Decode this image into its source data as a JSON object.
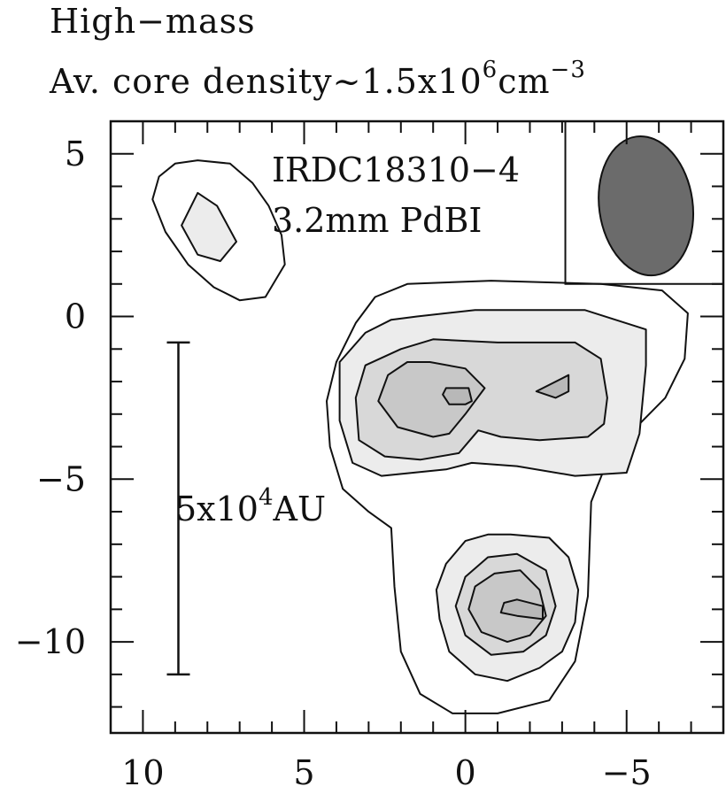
{
  "header": {
    "line1": "High−mass",
    "line2_prefix": "Av. core density~1.5x10",
    "line2_exp": "6",
    "line2_unit": "cm",
    "line2_unit_exp": "−3"
  },
  "chart_data": {
    "type": "contour",
    "title": "",
    "xlabel": "",
    "ylabel": "",
    "xlim": [
      11,
      -8
    ],
    "ylim": [
      -12.8,
      6
    ],
    "x_ticks": [
      10,
      5,
      0,
      -5
    ],
    "x_tick_labels": [
      "10",
      "5",
      "0",
      "−5"
    ],
    "y_ticks": [
      5,
      0,
      -5,
      -10
    ],
    "y_tick_labels": [
      "5",
      "0",
      "−5",
      "−10"
    ],
    "x_minor_step": 1,
    "y_minor_step": 1,
    "grid": false,
    "annotations": {
      "source": "IRDC18310−4",
      "instrument": "3.2mm PdBI"
    },
    "scale_bar": {
      "label_prefix": "5x10",
      "label_exp": "4",
      "label_unit": "AU",
      "x": 8.9,
      "y_from": -0.8,
      "y_to": -11.0
    },
    "beam": {
      "center": [
        -5.6,
        3.4
      ],
      "major_axis": 4.3,
      "minor_axis": 2.9,
      "fill": "#6b6b6b"
    },
    "contour_fills": [
      "#ffffff",
      "#ececec",
      "#d8d8d8",
      "#c8c8c8",
      "#b8b8b8",
      "#a8a8a8"
    ],
    "contours": [
      {
        "level": 1,
        "points": [
          [
            8.3,
            4.8
          ],
          [
            7.3,
            4.7
          ],
          [
            6.6,
            4.1
          ],
          [
            6.1,
            3.4
          ],
          [
            5.7,
            2.5
          ],
          [
            5.6,
            1.6
          ],
          [
            6.2,
            0.6
          ],
          [
            7.0,
            0.5
          ],
          [
            7.8,
            0.9
          ],
          [
            8.6,
            1.6
          ],
          [
            9.3,
            2.6
          ],
          [
            9.7,
            3.6
          ],
          [
            9.5,
            4.3
          ],
          [
            9.0,
            4.7
          ]
        ]
      },
      {
        "level": 2,
        "points": [
          [
            8.3,
            3.8
          ],
          [
            7.7,
            3.4
          ],
          [
            7.1,
            2.3
          ],
          [
            7.6,
            1.7
          ],
          [
            8.3,
            1.9
          ],
          [
            8.8,
            2.8
          ]
        ]
      },
      {
        "level": 1,
        "points": [
          [
            1.8,
            1.0
          ],
          [
            -0.8,
            1.1
          ],
          [
            -4.2,
            1.0
          ],
          [
            -6.1,
            0.8
          ],
          [
            -6.9,
            0.1
          ],
          [
            -6.8,
            -1.3
          ],
          [
            -6.2,
            -2.5
          ],
          [
            -5.1,
            -3.6
          ],
          [
            -4.3,
            -4.7
          ],
          [
            -3.9,
            -5.7
          ],
          [
            -3.8,
            -8.6
          ],
          [
            -3.4,
            -10.6
          ],
          [
            -2.6,
            -11.8
          ],
          [
            -1.0,
            -12.2
          ],
          [
            0.4,
            -12.2
          ],
          [
            1.4,
            -11.6
          ],
          [
            2.0,
            -10.3
          ],
          [
            2.2,
            -8.3
          ],
          [
            2.3,
            -6.5
          ],
          [
            3.0,
            -6.0
          ],
          [
            3.8,
            -5.3
          ],
          [
            4.2,
            -4.0
          ],
          [
            4.3,
            -2.6
          ],
          [
            4.0,
            -1.4
          ],
          [
            3.4,
            -0.2
          ],
          [
            2.8,
            0.6
          ]
        ]
      },
      {
        "level": 2,
        "points": [
          [
            1.5,
            0.0
          ],
          [
            -0.3,
            0.2
          ],
          [
            -3.7,
            0.2
          ],
          [
            -5.6,
            -0.4
          ],
          [
            -5.6,
            -1.5
          ],
          [
            -5.4,
            -3.6
          ],
          [
            -5.0,
            -4.8
          ],
          [
            -3.4,
            -4.9
          ],
          [
            -1.6,
            -4.6
          ],
          [
            -0.2,
            -4.5
          ],
          [
            0.6,
            -4.7
          ],
          [
            2.6,
            -4.9
          ],
          [
            3.5,
            -4.5
          ],
          [
            3.9,
            -3.2
          ],
          [
            3.9,
            -1.4
          ],
          [
            3.1,
            -0.5
          ],
          [
            2.3,
            -0.1
          ]
        ]
      },
      {
        "level": 3,
        "points": [
          [
            1.0,
            -0.7
          ],
          [
            -1.0,
            -0.8
          ],
          [
            -3.4,
            -0.8
          ],
          [
            -4.2,
            -1.3
          ],
          [
            -4.4,
            -2.5
          ],
          [
            -4.3,
            -3.3
          ],
          [
            -3.8,
            -3.7
          ],
          [
            -2.3,
            -3.8
          ],
          [
            -1.1,
            -3.7
          ],
          [
            -0.4,
            -3.5
          ],
          [
            0.2,
            -4.2
          ],
          [
            1.4,
            -4.4
          ],
          [
            2.5,
            -4.3
          ],
          [
            3.3,
            -3.8
          ],
          [
            3.4,
            -2.5
          ],
          [
            3.1,
            -1.5
          ],
          [
            2.0,
            -1.0
          ]
        ]
      },
      {
        "level": 4,
        "points": [
          [
            1.1,
            -1.4
          ],
          [
            0.0,
            -1.6
          ],
          [
            -0.6,
            -2.2
          ],
          [
            0.0,
            -3.0
          ],
          [
            0.5,
            -3.6
          ],
          [
            1.0,
            -3.7
          ],
          [
            2.1,
            -3.4
          ],
          [
            2.7,
            -2.6
          ],
          [
            2.4,
            -1.8
          ],
          [
            1.8,
            -1.4
          ]
        ]
      },
      {
        "level": 5,
        "points": [
          [
            0.6,
            -2.2
          ],
          [
            -0.1,
            -2.2
          ],
          [
            -0.2,
            -2.6
          ],
          [
            0.0,
            -2.7
          ],
          [
            0.5,
            -2.7
          ],
          [
            0.7,
            -2.4
          ]
        ]
      },
      {
        "level": 5,
        "points": [
          [
            -2.2,
            -2.3
          ],
          [
            -3.2,
            -1.8
          ],
          [
            -3.2,
            -2.3
          ],
          [
            -2.8,
            -2.5
          ]
        ]
      },
      {
        "level": 2,
        "points": [
          [
            -1.4,
            -6.7
          ],
          [
            -2.6,
            -6.8
          ],
          [
            -3.2,
            -7.4
          ],
          [
            -3.5,
            -8.4
          ],
          [
            -3.4,
            -9.4
          ],
          [
            -3.0,
            -10.3
          ],
          [
            -2.3,
            -10.8
          ],
          [
            -1.3,
            -11.2
          ],
          [
            -0.3,
            -11.0
          ],
          [
            0.5,
            -10.3
          ],
          [
            0.8,
            -9.3
          ],
          [
            0.9,
            -8.4
          ],
          [
            0.6,
            -7.6
          ],
          [
            0.0,
            -6.9
          ],
          [
            -0.7,
            -6.7
          ]
        ]
      },
      {
        "level": 3,
        "points": [
          [
            -1.6,
            -7.3
          ],
          [
            -2.5,
            -7.8
          ],
          [
            -2.8,
            -8.9
          ],
          [
            -2.5,
            -9.8
          ],
          [
            -1.8,
            -10.3
          ],
          [
            -0.8,
            -10.4
          ],
          [
            0.0,
            -9.8
          ],
          [
            0.3,
            -8.9
          ],
          [
            0.0,
            -8.0
          ],
          [
            -0.7,
            -7.4
          ]
        ]
      },
      {
        "level": 4,
        "points": [
          [
            -1.7,
            -7.8
          ],
          [
            -2.3,
            -8.4
          ],
          [
            -2.5,
            -9.2
          ],
          [
            -2.0,
            -9.8
          ],
          [
            -1.3,
            -10.0
          ],
          [
            -0.5,
            -9.7
          ],
          [
            -0.1,
            -9.0
          ],
          [
            -0.3,
            -8.3
          ],
          [
            -0.9,
            -7.9
          ]
        ]
      },
      {
        "level": 5,
        "points": [
          [
            -1.6,
            -8.7
          ],
          [
            -2.4,
            -8.9
          ],
          [
            -2.4,
            -9.3
          ],
          [
            -1.6,
            -9.2
          ],
          [
            -1.1,
            -9.1
          ],
          [
            -1.2,
            -8.8
          ]
        ]
      }
    ]
  }
}
